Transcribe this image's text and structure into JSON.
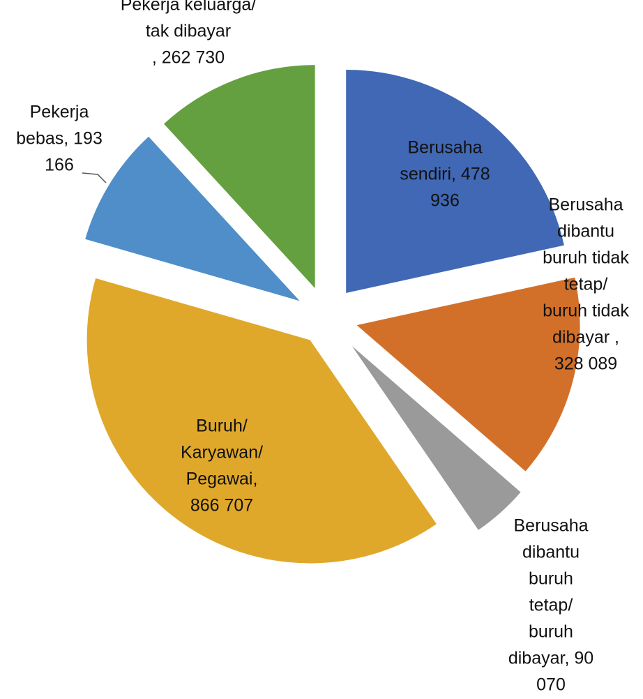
{
  "chart_data": {
    "type": "pie",
    "labels": [
      [
        "Berusaha",
        "sendiri, 478",
        "936"
      ],
      [
        "Berusaha",
        "dibantu",
        "buruh tidak",
        "tetap/",
        "buruh tidak",
        "dibayar ,",
        "328 089"
      ],
      [
        "Berusaha",
        "dibantu",
        "buruh",
        "tetap/",
        "buruh",
        "dibayar, 90",
        "070"
      ],
      [
        "Buruh/",
        "Karyawan/",
        "Pegawai,",
        "866 707"
      ],
      [
        "Pekerja",
        "bebas, 193",
        "166"
      ],
      [
        "Pekerja keluarga/",
        "tak dibayar",
        ", 262 730"
      ]
    ],
    "values": [
      478936,
      328089,
      90070,
      866707,
      193166,
      262730
    ],
    "colors": [
      "#4068b5",
      "#d2702a",
      "#9a9a9a",
      "#e0a82a",
      "#4f8ec8",
      "#64a03f"
    ]
  }
}
